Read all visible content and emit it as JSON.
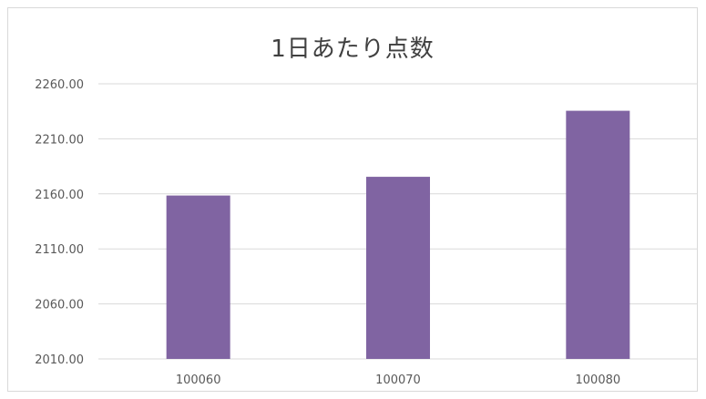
{
  "chart_data": {
    "type": "bar",
    "title": "1日あたり点数",
    "xlabel": "",
    "ylabel": "",
    "categories": [
      "100060",
      "100070",
      "100080"
    ],
    "values": [
      2158.5,
      2175.5,
      2235.5
    ],
    "ylim": [
      2010,
      2260
    ],
    "yticks": [
      2260,
      2210,
      2160,
      2110,
      2060,
      2010
    ],
    "ytick_labels": [
      "2260.00",
      "2210.00",
      "2160.00",
      "2110.00",
      "2060.00",
      "2010.00"
    ],
    "grid": true,
    "legend": "none",
    "bar_color": "#8064a2",
    "grid_color": "#d9d9d9"
  }
}
